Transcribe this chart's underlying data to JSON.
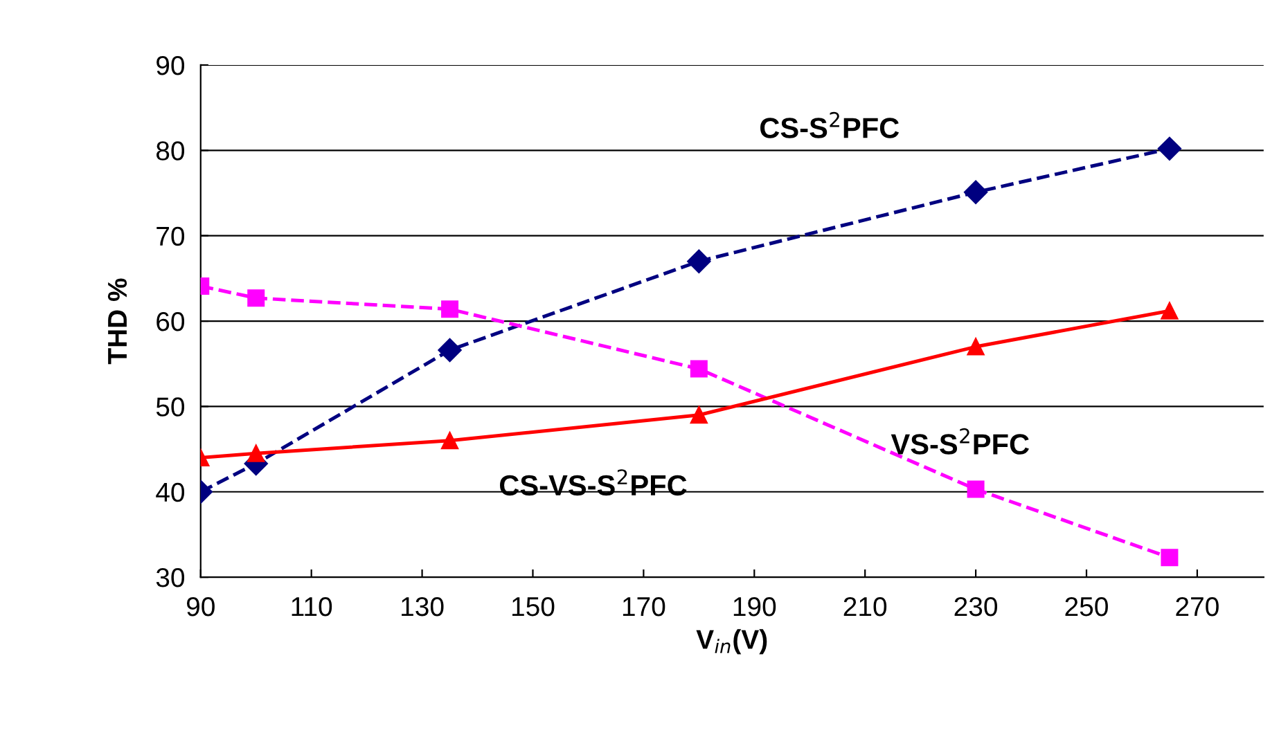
{
  "chart_data": {
    "type": "line",
    "xlabel": "V$_{in}$(V)",
    "ylabel": "THD %",
    "x": [
      90,
      100,
      135,
      180,
      230,
      265
    ],
    "series": [
      {
        "name": "CS-S$^{2}$PFC",
        "color": "#000080",
        "values": [
          40,
          43.3,
          56.6,
          67,
          75.1,
          80.2
        ],
        "marker": "diamond",
        "line_style": "dashed"
      },
      {
        "name": "VS-S$^{2}$PFC",
        "color": "#ff00ff",
        "values": [
          64.1,
          62.7,
          61.4,
          54.4,
          40.3,
          32.3
        ],
        "marker": "square",
        "line_style": "dashed"
      },
      {
        "name": "CS-VS-S$^{2}$PFC",
        "color": "#ff0000",
        "values": [
          44,
          44.5,
          46,
          49,
          57,
          61.2
        ],
        "marker": "triangle",
        "line_style": "solid"
      }
    ],
    "xlim": [
      90,
      282
    ],
    "xticks": [
      90,
      110,
      130,
      150,
      170,
      190,
      210,
      230,
      250,
      270
    ],
    "ylim": [
      30,
      90
    ],
    "yticks": [
      30,
      40,
      50,
      60,
      70,
      80,
      90
    ],
    "grid": "y",
    "legend": false
  }
}
